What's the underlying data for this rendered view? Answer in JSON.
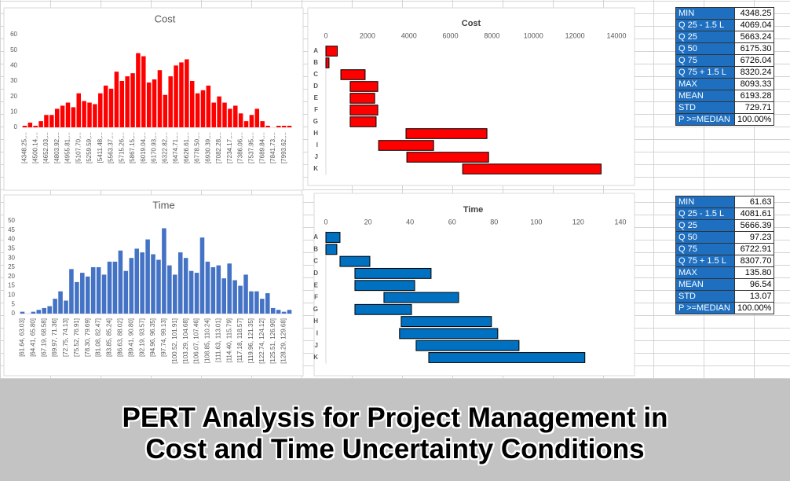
{
  "chart_data": [
    {
      "type": "histogram",
      "title": "Cost",
      "categories": [
        "[4348.25,...",
        null,
        "[4500.14,...",
        null,
        "[4652.03,...",
        null,
        "[4803.92,...",
        null,
        "[4955.81,...",
        null,
        "[5107.70,...",
        null,
        "[5259.59,...",
        null,
        "[5411.48,...",
        null,
        "[5563.37,...",
        null,
        "[5715.26,...",
        null,
        "[5867.15,...",
        null,
        "[6019.04,...",
        null,
        "[6170.93,...",
        null,
        "[6322.82,...",
        null,
        "[6474.71,...",
        null,
        "[6626.61,...",
        null,
        "[6778.50,...",
        null,
        "[6930.39,...",
        null,
        "[7082.28,...",
        null,
        "[7234.17,...",
        null,
        "[7386.06,...",
        null,
        "[7537.95,...",
        null,
        "[7689.84,...",
        null,
        "[7841.73,...",
        null,
        "[7993.62,...",
        null
      ],
      "values": [
        1,
        3,
        1,
        4,
        8,
        8,
        12,
        14,
        16,
        13,
        22,
        17,
        16,
        15,
        22,
        27,
        25,
        36,
        30,
        33,
        35,
        48,
        46,
        29,
        31,
        37,
        21,
        33,
        40,
        42,
        44,
        30,
        22,
        24,
        27,
        16,
        20,
        16,
        12,
        14,
        9,
        4,
        8,
        12,
        4,
        1,
        0,
        1,
        1,
        1
      ],
      "color": "#ff0000",
      "ylim": [
        0,
        60
      ],
      "yticks": [
        0,
        10,
        20,
        30,
        40,
        50,
        60
      ]
    },
    {
      "type": "gantt",
      "title": "Cost",
      "categories": [
        "A",
        "B",
        "C",
        "D",
        "E",
        "F",
        "G",
        "H",
        "I",
        "J",
        "K"
      ],
      "start": [
        0,
        0,
        720,
        1170,
        1170,
        1170,
        1170,
        3860,
        2540,
        3900,
        6590
      ],
      "duration": [
        550,
        150,
        1170,
        1330,
        1180,
        1330,
        1250,
        3900,
        2650,
        3940,
        6670
      ],
      "color": "#ff0000",
      "xlim": [
        0,
        14000
      ],
      "xticks": [
        0,
        2000,
        4000,
        6000,
        8000,
        10000,
        12000,
        14000
      ]
    },
    {
      "type": "histogram",
      "title": "Time",
      "categories": [
        "[61.64, 63.03]",
        null,
        "[64.41, 65.80]",
        null,
        "[67.19, 68.58]",
        null,
        "[69.97, 71.36]",
        null,
        "[72.75, 74.13]",
        null,
        "[75.52, 76.91]",
        null,
        "[78.30, 79.69]",
        null,
        "[81.08, 82.47]",
        null,
        "[83.85, 85.24]",
        null,
        "[86.63, 88.02]",
        null,
        "[89.41, 90.80]",
        null,
        "[92.19, 93.57]",
        null,
        "[94.96, 96.35]",
        null,
        "[97.74, 99.13]",
        null,
        "[100.52, 101.91]",
        null,
        "[103.29, 104.68]",
        null,
        "[106.07, 107.46]",
        null,
        "[108.85, 110.24]",
        null,
        "[111.63, 113.01]",
        null,
        "[114.40, 115.79]",
        null,
        "[117.18, 118.57]",
        null,
        "[119.96, 121.35]",
        null,
        "[122.74, 124.12]",
        null,
        "[125.51, 126.90]",
        null,
        "[128.29, 129.68]",
        null
      ],
      "values": [
        1,
        0,
        1,
        2,
        3,
        4,
        8,
        12,
        7,
        24,
        17,
        22,
        20,
        25,
        25,
        21,
        28,
        28,
        34,
        23,
        30,
        35,
        33,
        40,
        32,
        29,
        46,
        26,
        21,
        33,
        30,
        23,
        22,
        41,
        28,
        25,
        26,
        19,
        27,
        18,
        15,
        21,
        12,
        12,
        8,
        11,
        3,
        2,
        1,
        2
      ],
      "color": "#4472c4",
      "ylim": [
        0,
        50
      ],
      "yticks": [
        0,
        5,
        10,
        15,
        20,
        25,
        30,
        35,
        40,
        45,
        50
      ]
    },
    {
      "type": "gantt",
      "title": "Time",
      "categories": [
        "A",
        "B",
        "C",
        "D",
        "E",
        "F",
        "G",
        "H",
        "I",
        "J",
        "K"
      ],
      "start": [
        0,
        0,
        6.7,
        13.8,
        13.8,
        27.6,
        13.8,
        35.8,
        35,
        42.9,
        48.9
      ],
      "duration": [
        6.7,
        5.2,
        14.2,
        36.2,
        28.4,
        35.5,
        26.9,
        42.9,
        46.7,
        48.9,
        74.2
      ],
      "color": "#0070c0",
      "xlim": [
        0,
        140
      ],
      "xticks": [
        0,
        20,
        40,
        60,
        80,
        100,
        120,
        140
      ]
    }
  ],
  "tables": [
    {
      "rows": [
        [
          "MIN",
          "4348.25"
        ],
        [
          "Q 25 - 1.5 L",
          "4069.04"
        ],
        [
          "Q 25",
          "5663.24"
        ],
        [
          "Q 50",
          "6175.30"
        ],
        [
          "Q 75",
          "6726.04"
        ],
        [
          "Q 75 + 1.5 L",
          "8320.24"
        ],
        [
          "MAX",
          "8093.33"
        ],
        [
          "MEAN",
          "6193.28"
        ],
        [
          "STD",
          "729.71"
        ],
        [
          "P >=MEDIAN",
          "100.00%"
        ]
      ]
    },
    {
      "rows": [
        [
          "MIN",
          "61.63"
        ],
        [
          "Q 25 - 1.5 L",
          "4081.61"
        ],
        [
          "Q 25",
          "5666.39"
        ],
        [
          "Q 50",
          "97.23"
        ],
        [
          "Q 75",
          "6722.91"
        ],
        [
          "Q 75 + 1.5 L",
          "8307.70"
        ],
        [
          "MAX",
          "135.80"
        ],
        [
          "MEAN",
          "96.54"
        ],
        [
          "STD",
          "13.07"
        ],
        [
          "P >=MEDIAN",
          "100.00%"
        ]
      ]
    }
  ],
  "heading": [
    "PERT Analysis for Project Management in",
    "Cost and Time Uncertainty Conditions"
  ]
}
